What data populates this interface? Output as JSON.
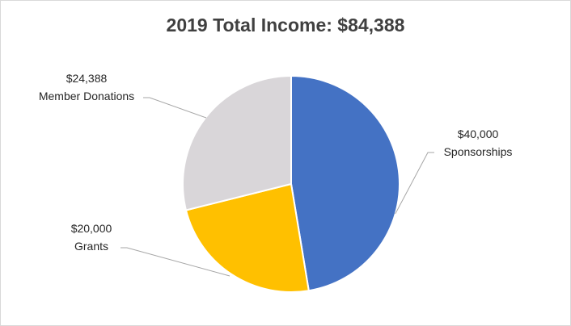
{
  "chart_data": {
    "type": "pie",
    "title": "2019 Total Income: $84,388",
    "slices": [
      {
        "label": "Sponsorships",
        "value": 40000,
        "value_text": "$40,000",
        "color": "#4472c4"
      },
      {
        "label": "Grants",
        "value": 20000,
        "value_text": "$20,000",
        "color": "#ffc000"
      },
      {
        "label": "Member Donations",
        "value": 24388,
        "value_text": "$24,388",
        "color": "#d9d6d9"
      }
    ],
    "start_angle": "12 o'clock",
    "direction": "clockwise",
    "leader_lines": true,
    "legend": "none"
  }
}
